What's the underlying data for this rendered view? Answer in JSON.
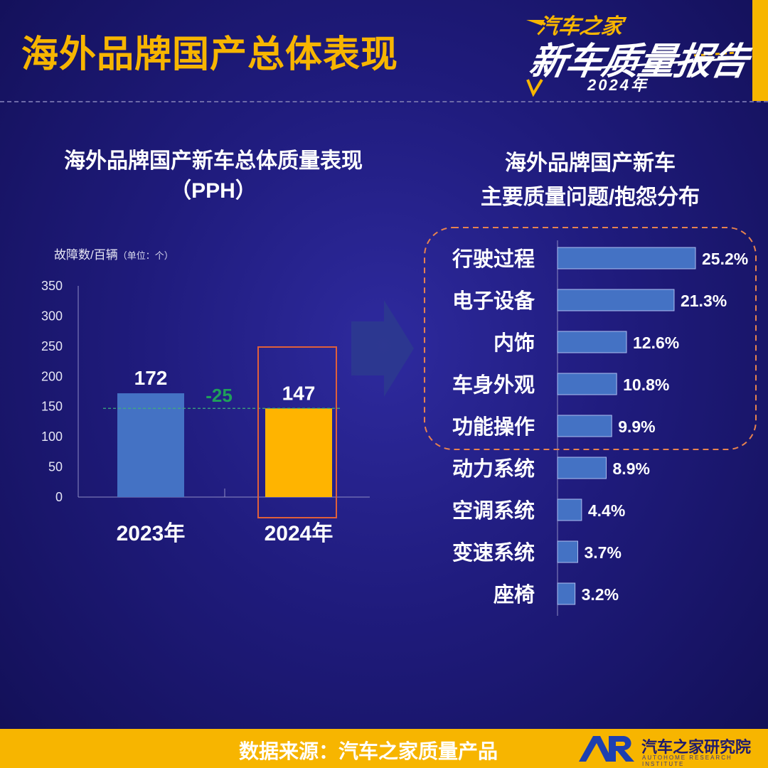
{
  "page_title": "海外品牌国产总体表现",
  "logo": {
    "brand": "汽车之家",
    "main": "新车质量报告",
    "year": "2024年"
  },
  "left_chart": {
    "title_line1": "海外品牌国产新车总体质量表现",
    "title_line2": "（PPH）",
    "unit_label": "故障数/百辆",
    "unit_note": "（单位：个）"
  },
  "right_chart": {
    "title_line1": "海外品牌国产新车",
    "title_line2": "主要质量问题/抱怨分布"
  },
  "footer": {
    "source": "数据来源：汽车之家质量产品",
    "org": "汽车之家研究院",
    "org_en": "AUTOHOME RESEARCH INSTITUTE"
  },
  "colors": {
    "accent": "#f7b500",
    "bar_blue": "#4472c4",
    "bar_yellow": "#ffb400",
    "diff_green": "#1fa05a",
    "highlight_box": "#e0603a"
  },
  "chart_data": [
    {
      "type": "bar",
      "categories": [
        "2023年",
        "2024年"
      ],
      "values": [
        172,
        147
      ],
      "data_labels": [
        "172",
        "147"
      ],
      "ylim": [
        0,
        350
      ],
      "yticks": [
        0,
        50,
        100,
        150,
        200,
        250,
        300,
        350
      ],
      "difference_label": "-25",
      "highlight_category": "2024年"
    },
    {
      "type": "bar",
      "orientation": "horizontal",
      "categories": [
        "行驶过程",
        "电子设备",
        "内饰",
        "车身外观",
        "功能操作",
        "动力系统",
        "空调系统",
        "变速系统",
        "座椅"
      ],
      "values": [
        25.2,
        21.3,
        12.6,
        10.8,
        9.9,
        8.9,
        4.4,
        3.7,
        3.2
      ],
      "data_labels": [
        "25.2%",
        "21.3%",
        "12.6%",
        "10.8%",
        "9.9%",
        "8.9%",
        "4.4%",
        "3.7%",
        "3.2%"
      ],
      "highlighted_top_n": 5
    }
  ]
}
